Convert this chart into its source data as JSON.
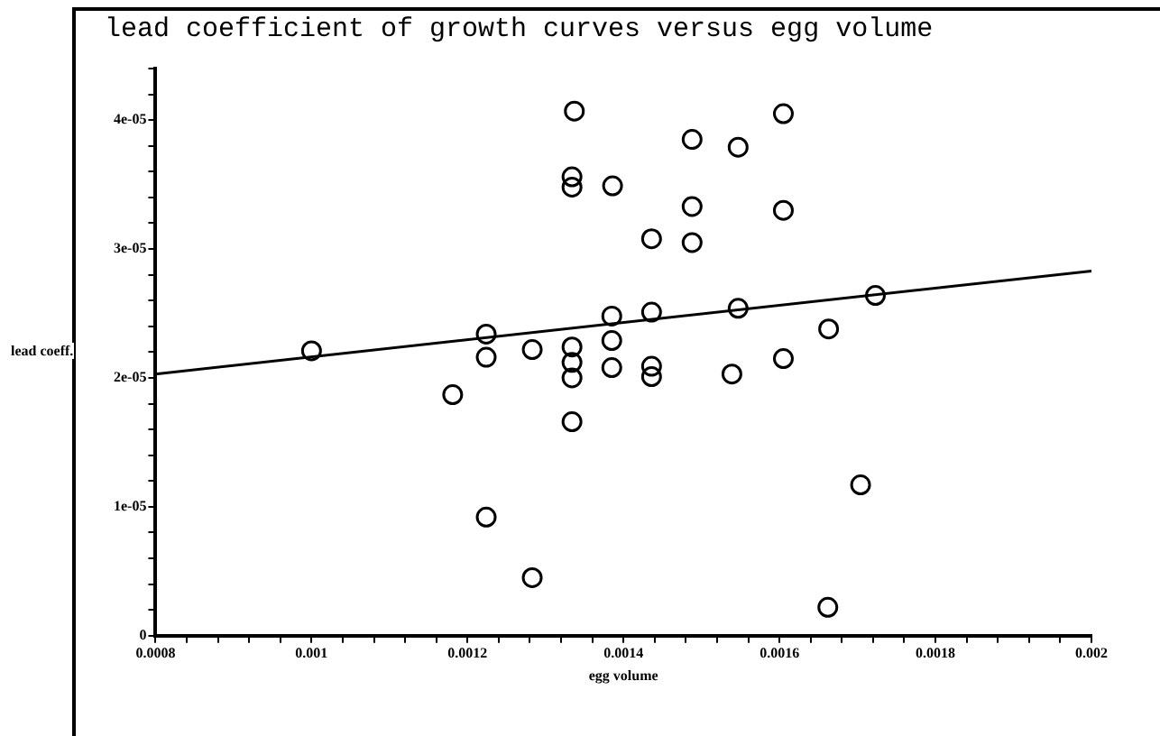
{
  "chart_data": {
    "type": "scatter",
    "title": "lead coefficient of growth curves versus egg volume",
    "xlabel": "egg volume",
    "ylabel": "lead coeff.",
    "xlim": [
      0.0008,
      0.002
    ],
    "ylim": [
      0,
      4.4e-05
    ],
    "xticks": [
      0.0008,
      {
        "value": 0.00084,
        "label": null
      },
      {
        "value": 0.00088,
        "label": null
      },
      {
        "value": 0.00092,
        "label": null
      },
      {
        "value": 0.00096,
        "label": null
      },
      0.001,
      {
        "value": 0.00104,
        "label": null
      },
      {
        "value": 0.00108,
        "label": null
      },
      {
        "value": 0.00112,
        "label": null
      },
      {
        "value": 0.00116,
        "label": null
      },
      0.0012,
      {
        "value": 0.00124,
        "label": null
      },
      {
        "value": 0.00128,
        "label": null
      },
      {
        "value": 0.00132,
        "label": null
      },
      {
        "value": 0.00136,
        "label": null
      },
      0.0014,
      {
        "value": 0.00144,
        "label": null
      },
      {
        "value": 0.00148,
        "label": null
      },
      {
        "value": 0.00152,
        "label": null
      },
      {
        "value": 0.00156,
        "label": null
      },
      0.0016,
      {
        "value": 0.00164,
        "label": null
      },
      {
        "value": 0.00168,
        "label": null
      },
      {
        "value": 0.00172,
        "label": null
      },
      {
        "value": 0.00176,
        "label": null
      },
      0.0018,
      {
        "value": 0.00184,
        "label": null
      },
      {
        "value": 0.00188,
        "label": null
      },
      {
        "value": 0.00192,
        "label": null
      },
      {
        "value": 0.00196,
        "label": null
      },
      0.002
    ],
    "yticks": [
      0,
      {
        "value": 2e-06,
        "label": null
      },
      {
        "value": 4e-06,
        "label": null
      },
      {
        "value": 6e-06,
        "label": null
      },
      {
        "value": 8e-06,
        "label": null
      },
      {
        "value": 1e-05,
        "label": "1e-05"
      },
      {
        "value": 1.2e-05,
        "label": null
      },
      {
        "value": 1.4e-05,
        "label": null
      },
      {
        "value": 1.6e-05,
        "label": null
      },
      {
        "value": 1.8e-05,
        "label": null
      },
      {
        "value": 2e-05,
        "label": "2e-05"
      },
      {
        "value": 2.2e-05,
        "label": null
      },
      {
        "value": 2.4e-05,
        "label": null
      },
      {
        "value": 2.6e-05,
        "label": null
      },
      {
        "value": 2.8e-05,
        "label": null
      },
      {
        "value": 3e-05,
        "label": "3e-05"
      },
      {
        "value": 3.2e-05,
        "label": null
      },
      {
        "value": 3.4e-05,
        "label": null
      },
      {
        "value": 3.6e-05,
        "label": null
      },
      {
        "value": 3.8e-05,
        "label": null
      },
      {
        "value": 4e-05,
        "label": "4e-05"
      },
      {
        "value": 4.2e-05,
        "label": null
      },
      {
        "value": 4.4e-05,
        "label": null
      }
    ],
    "grid": false,
    "legend": false,
    "marker": "circle",
    "series": [
      {
        "color": "#000000",
        "x": [
          0.001,
          0.001224,
          0.001224,
          0.001283,
          0.001334,
          0.001334,
          0.001334,
          0.001334,
          0.001181,
          0.001224,
          0.001283,
          0.001337,
          0.001334,
          0.001334,
          0.001386,
          0.001488,
          0.001547,
          0.001605,
          0.001488,
          0.001605,
          0.001436,
          0.001488,
          0.001385,
          0.001436,
          0.001547,
          0.001723,
          0.001385,
          0.001385,
          0.001436,
          0.001436,
          0.001539,
          0.001605,
          0.001663,
          0.001704,
          0.001662
        ],
        "values": [
          2.21e-05,
          2.34e-05,
          2.16e-05,
          2.22e-05,
          2.24e-05,
          2.12e-05,
          2e-05,
          1.66e-05,
          1.87e-05,
          9.2e-06,
          4.5e-06,
          4.07e-05,
          3.56e-05,
          3.48e-05,
          3.49e-05,
          3.85e-05,
          3.79e-05,
          4.05e-05,
          3.33e-05,
          3.3e-05,
          3.08e-05,
          3.05e-05,
          2.48e-05,
          2.51e-05,
          2.54e-05,
          2.64e-05,
          2.29e-05,
          2.08e-05,
          2.09e-05,
          2.01e-05,
          2.03e-05,
          2.15e-05,
          2.38e-05,
          1.17e-05,
          2.2e-06
        ]
      },
      {
        "type": "line",
        "color": "#000000",
        "marker": "none",
        "x": [
          0.0008,
          0.002
        ],
        "values": [
          2.03e-05,
          2.83e-05
        ]
      }
    ]
  }
}
